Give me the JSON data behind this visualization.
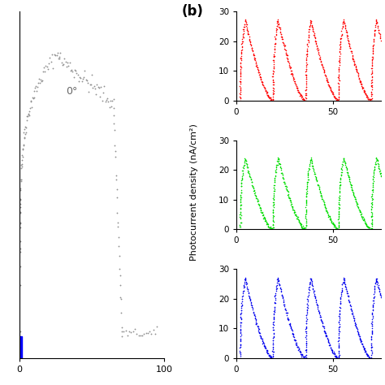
{
  "left_panel": {
    "annotation": "0°",
    "color": "#909090",
    "xlim": [
      0,
      100
    ],
    "x_ticks": [
      0,
      100
    ],
    "x_tick_labels": [
      "0",
      "100"
    ]
  },
  "right_panels": [
    {
      "color": "#ff0000",
      "ylim": [
        0,
        30
      ],
      "yticks": [
        0,
        10,
        20,
        30
      ],
      "xticks": [
        0,
        50
      ],
      "xlim": [
        0,
        75
      ]
    },
    {
      "color": "#00dd00",
      "ylim": [
        0,
        30
      ],
      "yticks": [
        0,
        10,
        20,
        30
      ],
      "xticks": [
        0,
        50
      ],
      "xlim": [
        0,
        75
      ]
    },
    {
      "color": "#0000ee",
      "ylim": [
        0,
        30
      ],
      "yticks": [
        0,
        10,
        20,
        30
      ],
      "xticks": [
        0,
        50
      ],
      "xlim": [
        0,
        75
      ]
    }
  ],
  "ylabel_shared": "Photocurrent density (nA/cm²)",
  "label_b": "(b)",
  "num_cycles": 4,
  "cycle_period": 17,
  "peak_value_red": 27,
  "peak_value_green": 24,
  "peak_value_blue": 27,
  "rise_time": 2.5,
  "fall_time": 14.0,
  "x_start": 2
}
